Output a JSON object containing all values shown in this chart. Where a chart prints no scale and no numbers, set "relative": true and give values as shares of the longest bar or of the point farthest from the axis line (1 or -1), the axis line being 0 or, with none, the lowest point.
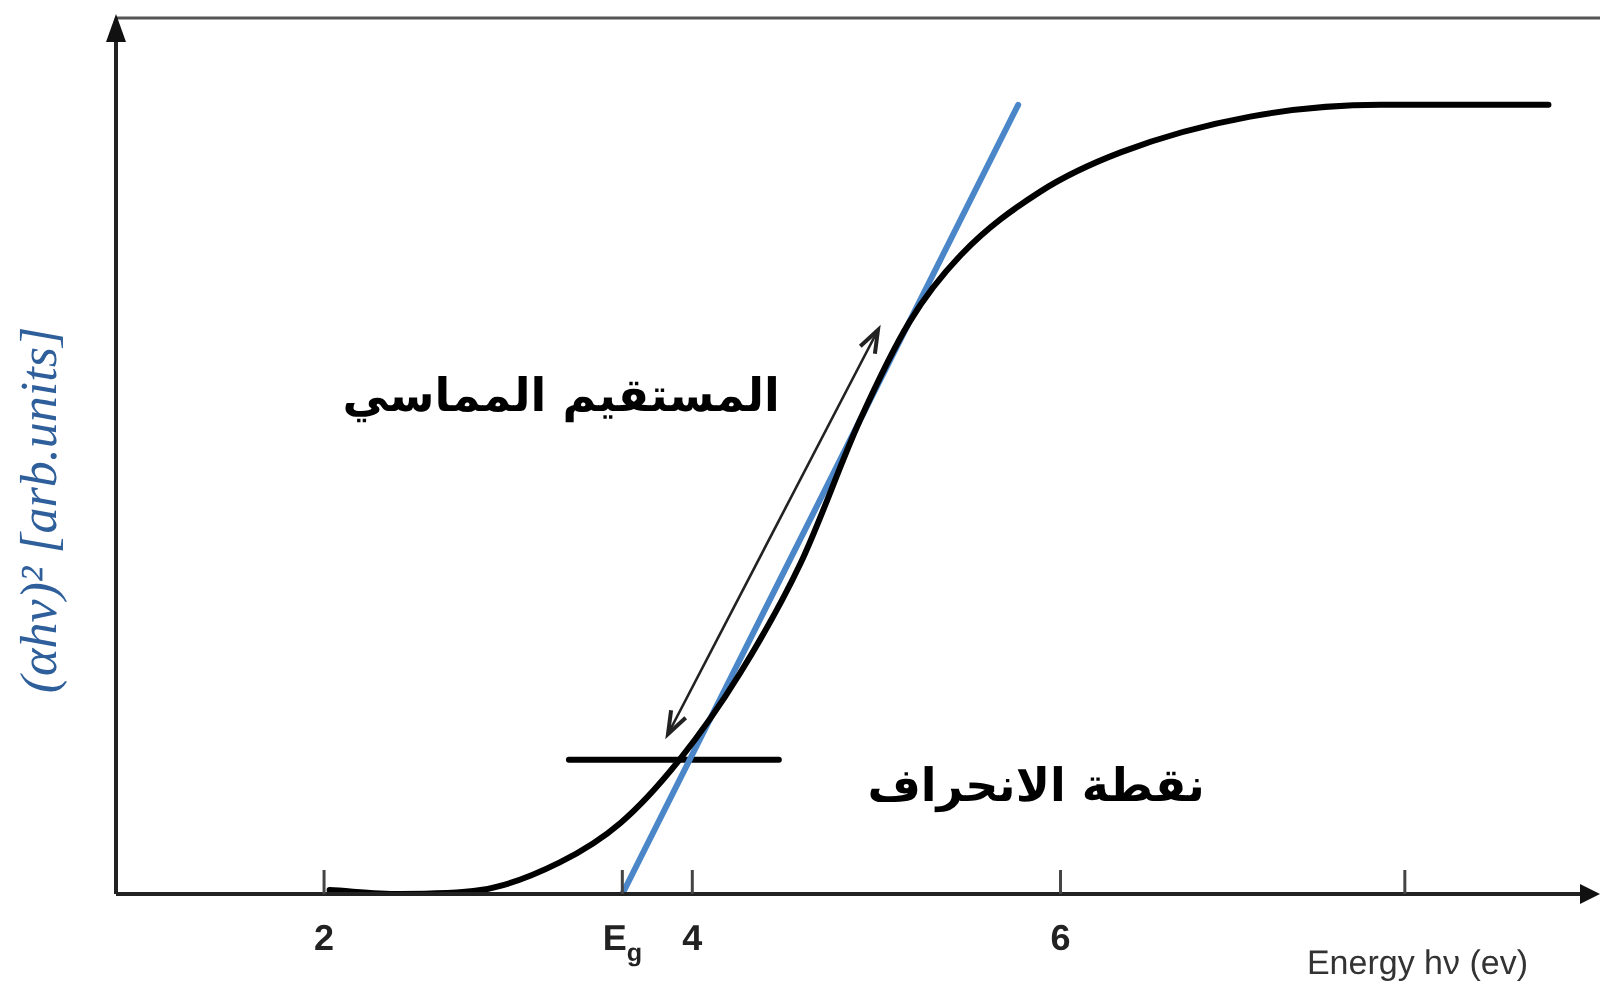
{
  "chart_data": {
    "type": "line",
    "relative": true,
    "xlabel": "Energy hν (ev)",
    "ylabel": "(αhν)² [arb.units]",
    "xlim": [
      0.87,
      8.93
    ],
    "xticks": [
      2,
      {
        "value": 3.62,
        "label": "E$_{g}$"
      },
      4,
      6,
      {
        "value": 7.87,
        "label": null
      }
    ],
    "marker": "none",
    "grid": false,
    "legend": false,
    "series": [
      {
        "color": "#000000",
        "x": [
          2.03,
          2.41,
          2.85,
          3.28,
          3.61,
          3.93,
          4.26,
          4.59,
          4.91,
          5.18,
          5.46,
          5.89,
          6.33,
          7.03,
          7.74,
          8.65
        ],
        "values": [
          0.005,
          0,
          0.005,
          0.04,
          0.09,
          0.17,
          0.28,
          0.42,
          0.6,
          0.725,
          0.81,
          0.89,
          0.94,
          0.985,
          1,
          1
        ]
      },
      {
        "type": "line",
        "color": "#4a86c8",
        "x": [
          3.62,
          5.77
        ],
        "values": [
          0,
          1
        ]
      },
      {
        "type": "line",
        "color": "#000000",
        "x": [
          3.33,
          4.47
        ],
        "values": [
          0.17,
          0.17
        ]
      }
    ],
    "annotations": [
      "المستقيم المماسي",
      "نقطة الانحراف"
    ]
  }
}
